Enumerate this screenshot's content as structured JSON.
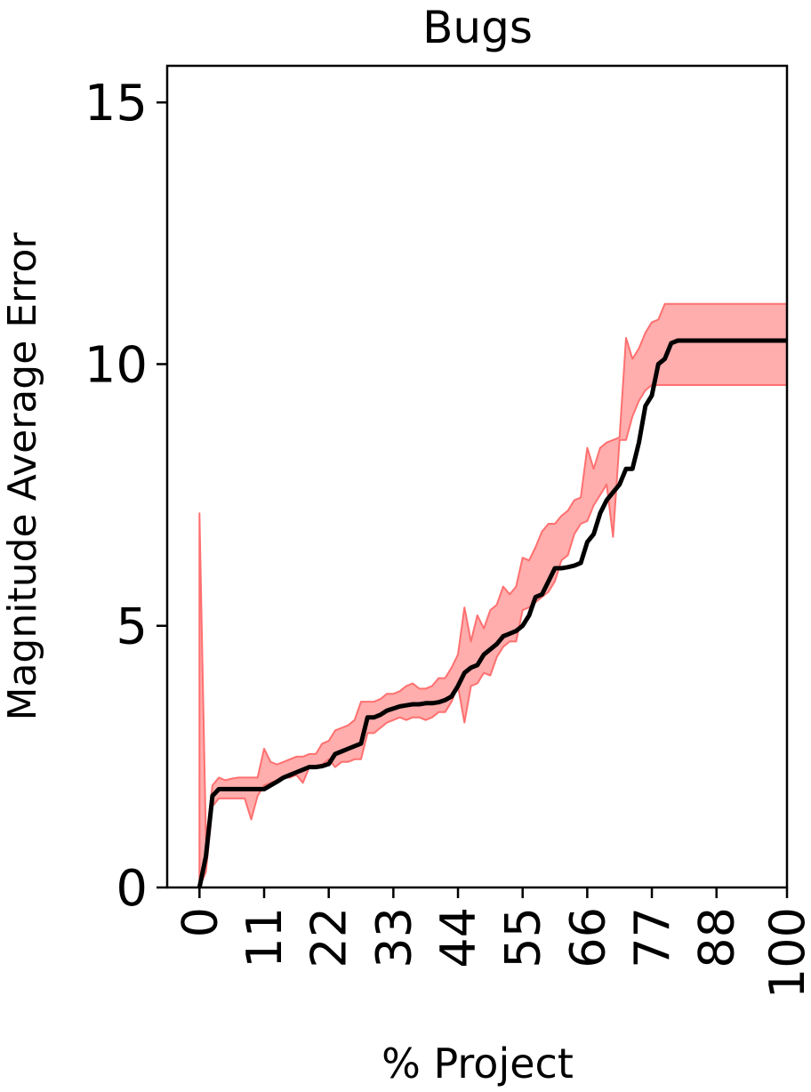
{
  "chart_data": {
    "type": "line",
    "title": "Bugs",
    "xlabel": "% Project",
    "ylabel": "Magnitude Average Error",
    "xlim": [
      -5.5,
      100
    ],
    "ylim": [
      0,
      15.7
    ],
    "x_ticks": [
      0,
      11,
      22,
      33,
      44,
      55,
      66,
      77,
      88,
      100
    ],
    "x_tick_labels": [
      "0",
      "11",
      "22",
      "33",
      "44",
      "55",
      "66",
      "77",
      "88",
      "100"
    ],
    "y_ticks": [
      0,
      5,
      10,
      15
    ],
    "y_tick_labels": [
      "0",
      "5",
      "10",
      "15"
    ],
    "grid": false,
    "colors": {
      "line": "#000000",
      "band_fill": "#ff9999",
      "band_edge": "#ff7070",
      "axes": "#000000"
    },
    "series": [
      {
        "x": [
          0,
          1.1,
          2.2,
          3.3,
          4.4,
          5.5,
          6.6,
          7.7,
          8.8,
          9.9,
          11,
          12.1,
          13.2,
          14.3,
          15.4,
          16.5,
          17.6,
          18.7,
          19.8,
          20.9,
          22,
          23.1,
          24.2,
          25.3,
          26.4,
          27.5,
          28.6,
          29.7,
          30.8,
          31.9,
          33,
          34.1,
          35.2,
          36.3,
          37.4,
          38.5,
          39.6,
          40.7,
          41.8,
          42.9,
          44,
          45.1,
          46.2,
          47.3,
          48.4,
          49.5,
          50.6,
          51.7,
          52.8,
          53.9,
          55,
          56.1,
          57.2,
          58.3,
          59.4,
          60.5,
          61.6,
          62.7,
          63.8,
          64.9,
          66,
          67.1,
          68.2,
          69.3,
          70.4,
          71.5,
          72.6,
          73.7,
          74.8,
          75.9,
          77,
          78.1,
          79.2,
          80.3,
          81.4,
          82.5,
          83.6,
          84.7,
          85.8,
          86.9,
          88,
          89.1,
          90.2,
          91.3,
          92.4,
          93.5,
          94.6,
          95.7,
          96.8,
          97.9,
          99,
          100
        ],
        "mean": [
          0.0,
          0.6,
          1.75,
          1.88,
          1.88,
          1.88,
          1.88,
          1.88,
          1.88,
          1.88,
          1.88,
          1.95,
          2.02,
          2.1,
          2.15,
          2.2,
          2.25,
          2.3,
          2.3,
          2.32,
          2.36,
          2.55,
          2.6,
          2.65,
          2.7,
          2.75,
          3.25,
          3.25,
          3.3,
          3.38,
          3.42,
          3.46,
          3.48,
          3.5,
          3.5,
          3.52,
          3.52,
          3.54,
          3.58,
          3.65,
          3.85,
          4.1,
          4.2,
          4.25,
          4.45,
          4.55,
          4.65,
          4.8,
          4.85,
          4.9,
          5.0,
          5.2,
          5.55,
          5.6,
          5.85,
          6.1,
          6.1,
          6.12,
          6.15,
          6.2,
          6.6,
          6.75,
          7.15,
          7.4,
          7.55,
          7.7,
          8.0,
          8.0,
          8.5,
          9.2,
          9.4,
          10.0,
          10.1,
          10.4,
          10.45,
          10.45,
          10.45,
          10.45,
          10.45,
          10.45,
          10.45,
          10.45,
          10.45,
          10.45,
          10.45,
          10.45,
          10.45,
          10.45,
          10.45,
          10.45,
          10.45,
          10.45
        ],
        "upper": [
          7.15,
          0.9,
          1.95,
          2.1,
          2.05,
          2.08,
          2.1,
          2.1,
          2.1,
          2.1,
          2.65,
          2.4,
          2.35,
          2.4,
          2.45,
          2.5,
          2.5,
          2.55,
          2.55,
          2.75,
          2.8,
          3.0,
          3.05,
          3.1,
          3.2,
          3.55,
          3.55,
          3.55,
          3.6,
          3.7,
          3.7,
          3.75,
          3.85,
          3.9,
          3.8,
          3.8,
          3.85,
          4.0,
          4.0,
          4.2,
          4.45,
          5.35,
          4.7,
          5.2,
          4.95,
          5.3,
          5.4,
          5.75,
          5.6,
          5.75,
          6.3,
          6.25,
          6.5,
          6.8,
          6.95,
          6.95,
          7.1,
          7.2,
          7.4,
          7.45,
          8.4,
          8.0,
          8.4,
          8.5,
          8.55,
          8.6,
          10.5,
          10.1,
          10.3,
          10.6,
          10.8,
          10.85,
          11.15,
          11.15,
          11.15,
          11.15,
          11.15,
          11.15,
          11.15,
          11.15,
          11.15,
          11.15,
          11.15,
          11.15,
          11.15,
          11.15,
          11.15,
          11.15,
          11.15,
          11.15,
          11.15,
          11.15
        ],
        "lower": [
          0.0,
          0.3,
          1.55,
          1.7,
          1.7,
          1.7,
          1.7,
          1.7,
          1.3,
          1.75,
          1.95,
          2.0,
          2.05,
          2.1,
          2.1,
          2.15,
          2.0,
          2.3,
          2.3,
          2.35,
          2.45,
          2.3,
          2.4,
          2.4,
          2.45,
          2.45,
          2.95,
          2.95,
          3.05,
          3.15,
          3.2,
          3.25,
          3.2,
          3.25,
          3.25,
          3.2,
          3.25,
          3.35,
          3.35,
          3.55,
          3.85,
          3.15,
          3.85,
          3.9,
          4.1,
          4.05,
          4.4,
          4.6,
          4.7,
          4.7,
          5.3,
          5.35,
          5.45,
          5.55,
          5.65,
          5.85,
          6.25,
          6.35,
          6.75,
          6.95,
          7.0,
          7.3,
          7.5,
          7.7,
          6.7,
          8.55,
          8.55,
          9.0,
          9.3,
          9.5,
          9.6,
          9.6,
          9.6,
          9.6,
          9.6,
          9.6,
          9.6,
          9.6,
          9.6,
          9.6,
          9.6,
          9.6,
          9.6,
          9.6,
          9.6,
          9.6,
          9.6,
          9.6,
          9.6,
          9.6,
          9.6,
          9.6
        ]
      }
    ]
  }
}
